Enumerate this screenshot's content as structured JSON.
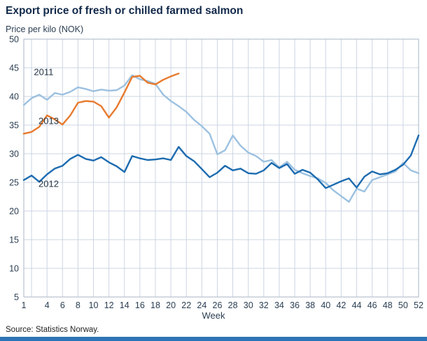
{
  "colors": {
    "footer_bar": "#2e74b5",
    "title_text": "#12294a",
    "tick_text": "#2b3e52"
  },
  "chart_data": {
    "type": "line",
    "title": "Export price of fresh or chilled farmed salmon",
    "ylabel": "Price per kilo (NOK)",
    "xlabel": "Week",
    "source": "Source: Statistics Norway.",
    "ylim": [
      5,
      50
    ],
    "xlim": [
      1,
      52
    ],
    "ytick_step": 5,
    "xticks": [
      1,
      4,
      6,
      8,
      10,
      12,
      14,
      16,
      18,
      20,
      22,
      24,
      26,
      28,
      30,
      32,
      34,
      36,
      38,
      40,
      42,
      44,
      46,
      48,
      50,
      52
    ],
    "grid": true,
    "grid_color": "#ccd5e3",
    "border_color": "#a9b6c4",
    "legend_position": "inline-labels",
    "series": [
      {
        "name": "2011",
        "color": "#9cc1e0",
        "start_week": 1,
        "values": [
          38.5,
          39.7,
          40.3,
          39.4,
          40.6,
          40.3,
          40.8,
          41.6,
          41.3,
          40.9,
          41.2,
          41.0,
          41.1,
          41.9,
          43.7,
          43.0,
          42.7,
          42.2,
          40.3,
          39.2,
          38.3,
          37.3,
          35.9,
          34.8,
          33.5,
          29.9,
          30.6,
          33.2,
          31.4,
          30.2,
          29.6,
          28.6,
          28.9,
          27.6,
          28.6,
          27.2,
          26.6,
          26.1,
          25.7,
          24.9,
          23.6,
          22.6,
          21.6,
          23.9,
          23.4,
          25.4,
          25.9,
          26.4,
          26.9,
          28.4,
          27.1,
          26.6
        ]
      },
      {
        "name": "2012",
        "color": "#1c6bb0",
        "start_week": 1,
        "values": [
          25.4,
          26.2,
          25.1,
          26.4,
          27.4,
          27.9,
          29.1,
          29.8,
          29.1,
          28.8,
          29.4,
          28.5,
          27.8,
          26.8,
          29.6,
          29.2,
          28.9,
          29.0,
          29.2,
          28.9,
          31.2,
          29.6,
          28.7,
          27.3,
          25.9,
          26.7,
          27.9,
          27.1,
          27.4,
          26.6,
          26.5,
          27.1,
          28.4,
          27.5,
          28.2,
          26.5,
          27.2,
          26.7,
          25.5,
          24.0,
          24.6,
          25.2,
          25.7,
          24.1,
          26.0,
          26.9,
          26.4,
          26.6,
          27.2,
          28.1,
          29.7,
          33.2
        ]
      },
      {
        "name": "2013",
        "color": "#e87a2e",
        "start_week": 1,
        "values": [
          33.5,
          33.8,
          34.7,
          36.7,
          36.0,
          35.1,
          36.7,
          38.9,
          39.2,
          39.1,
          38.3,
          36.3,
          38.1,
          40.7,
          43.4,
          43.6,
          42.4,
          42.1,
          42.9,
          43.5,
          44.0
        ]
      }
    ],
    "series_labels": [
      {
        "text": "2011",
        "week": 2.3,
        "value": 43.7
      },
      {
        "text": "2013",
        "week": 2.9,
        "value": 35.2
      },
      {
        "text": "2012",
        "week": 2.9,
        "value": 24.2
      }
    ]
  }
}
